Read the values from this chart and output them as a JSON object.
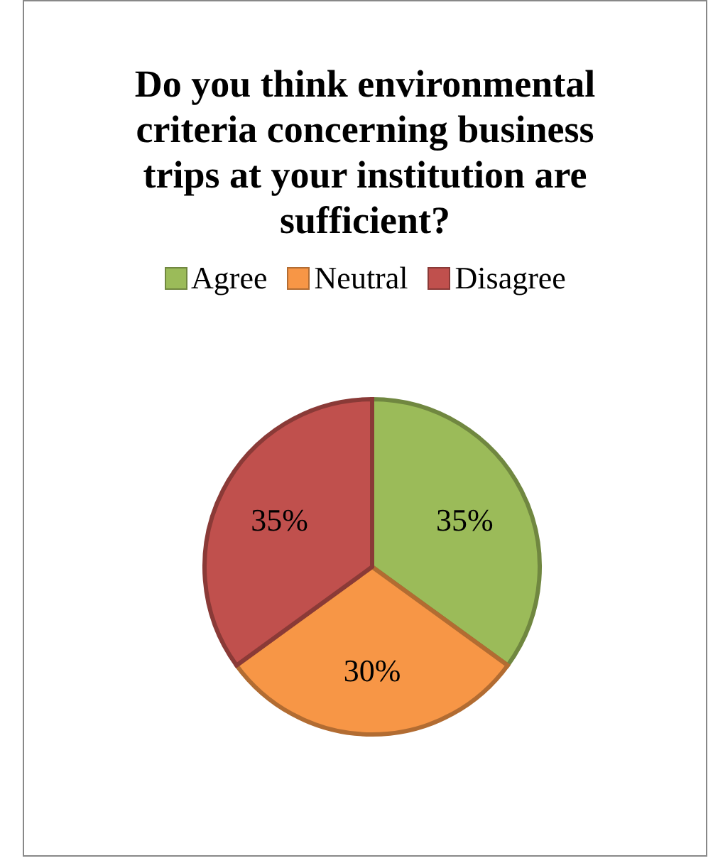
{
  "chart_data": {
    "type": "pie",
    "title": "Do you think environmental criteria concerning business trips at your institution are sufficient?",
    "categories": [
      "Agree",
      "Neutral",
      "Disagree"
    ],
    "values": [
      35,
      30,
      35
    ],
    "colors": [
      "#9bbb59",
      "#f79646",
      "#c0504d"
    ],
    "value_labels": [
      "35%",
      "30%",
      "35%"
    ],
    "legend": "top"
  }
}
